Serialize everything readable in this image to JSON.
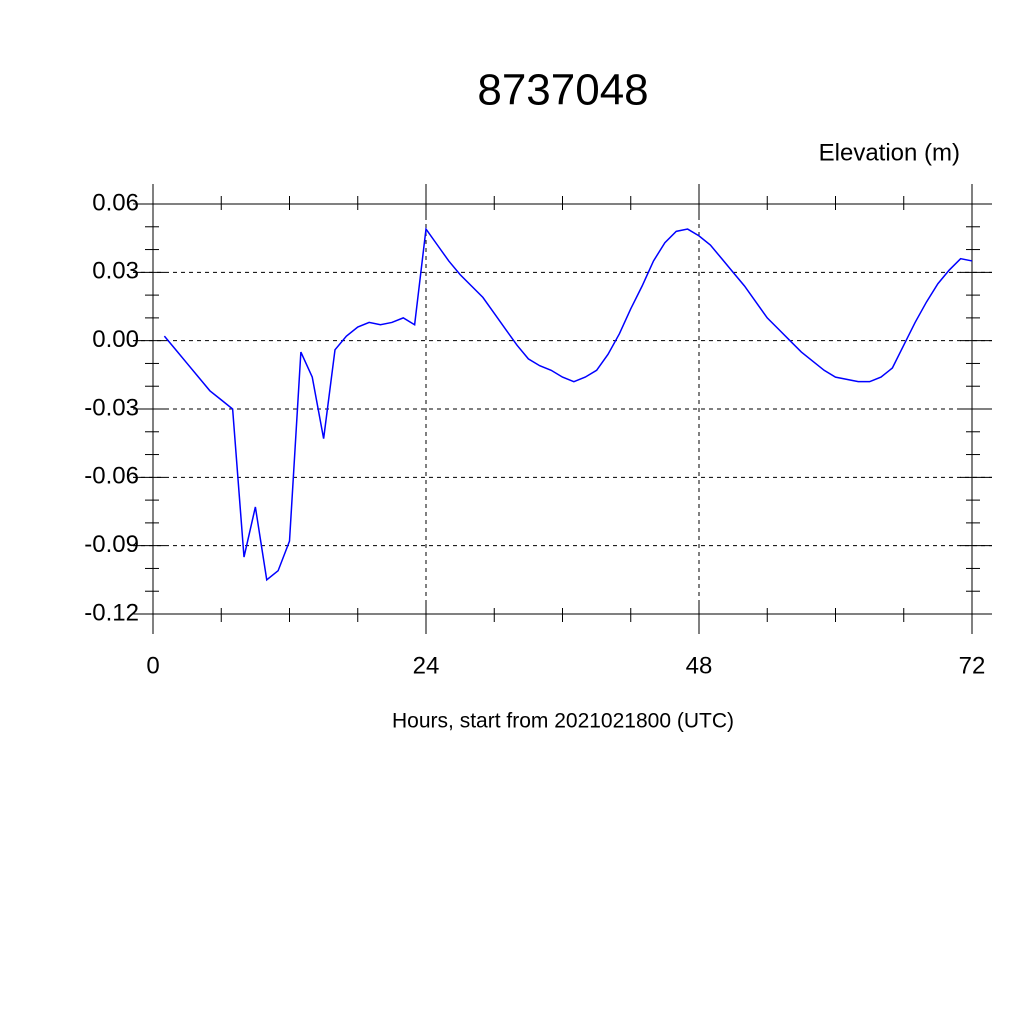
{
  "chart_data": {
    "type": "line",
    "title": "8737048",
    "y_label": "Elevation (m)",
    "x_label": "Hours, start from 2021021800 (UTC)",
    "x": [
      1,
      2,
      3,
      4,
      5,
      6,
      7,
      8,
      9,
      10,
      11,
      12,
      13,
      14,
      15,
      16,
      17,
      18,
      19,
      20,
      21,
      22,
      23,
      24,
      25,
      26,
      27,
      28,
      29,
      30,
      31,
      32,
      33,
      34,
      35,
      36,
      37,
      38,
      39,
      40,
      41,
      42,
      43,
      44,
      45,
      46,
      47,
      48,
      49,
      50,
      51,
      52,
      53,
      54,
      55,
      56,
      57,
      58,
      59,
      60,
      61,
      62,
      63,
      64,
      65,
      66,
      67,
      68,
      69,
      70,
      71,
      72
    ],
    "series": [
      {
        "name": "Elevation",
        "color": "#0000ff",
        "values": [
          0.002,
          -0.004,
          -0.01,
          -0.016,
          -0.022,
          -0.026,
          -0.03,
          -0.095,
          -0.073,
          -0.105,
          -0.101,
          -0.088,
          -0.005,
          -0.016,
          -0.043,
          -0.004,
          0.002,
          0.006,
          0.008,
          0.007,
          0.008,
          0.01,
          0.007,
          0.049,
          0.042,
          0.035,
          0.029,
          0.024,
          0.019,
          0.012,
          0.005,
          -0.002,
          -0.008,
          -0.011,
          -0.013,
          -0.016,
          -0.018,
          -0.016,
          -0.013,
          -0.006,
          0.003,
          0.014,
          0.024,
          0.035,
          0.043,
          0.048,
          0.049,
          0.046,
          0.042,
          0.036,
          0.03,
          0.024,
          0.017,
          0.01,
          0.005,
          0.0,
          -0.005,
          -0.009,
          -0.013,
          -0.016,
          -0.017,
          -0.018,
          -0.018,
          -0.016,
          -0.012,
          -0.002,
          0.008,
          0.017,
          0.025,
          0.031,
          0.036,
          0.035
        ]
      }
    ],
    "xlim": [
      0,
      72
    ],
    "xticks": [
      0,
      24,
      48,
      72
    ],
    "ylim": [
      -0.12,
      0.06
    ],
    "yticks": [
      0.06,
      0.03,
      {
        "value": 0,
        "label": "0.00"
      },
      -0.03,
      -0.06,
      -0.09,
      -0.12
    ],
    "grid": true
  }
}
